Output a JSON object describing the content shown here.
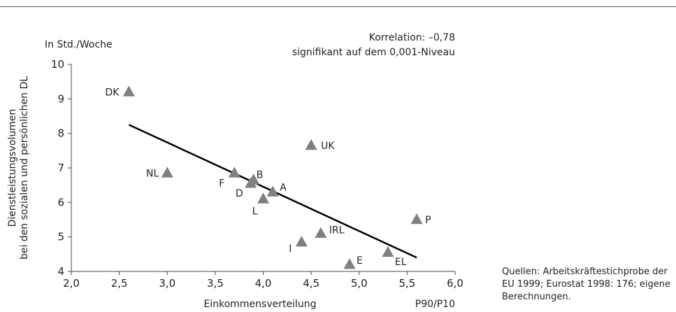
{
  "source_note": "Quellen: Arbeitskräftestichprobe der EU 1999; Eurostat 1998: 176; eigene Berechnungen.",
  "chart_data": {
    "type": "scatter",
    "y_unit_label": "In Std./Woche",
    "ylabel": "Dienstleistungsvolumen bei den sozialen und persönlichen DL",
    "xlabel": "Einkommensverteilung",
    "x_unit_label": "P90/P10",
    "annotation": {
      "line1": "Korrelation: –0,78",
      "line2": "signifikant auf dem 0,001-Niveau"
    },
    "xlim": [
      2.0,
      6.0
    ],
    "ylim": [
      4,
      10
    ],
    "x_ticks": [
      "2,0",
      "2,5",
      "3,0",
      "3,5",
      "4,0",
      "4,5",
      "5,0",
      "5,5",
      "6,0"
    ],
    "y_ticks": [
      "4",
      "5",
      "6",
      "7",
      "8",
      "9",
      "10"
    ],
    "grid": false,
    "marker": "triangle",
    "marker_color": "#808080",
    "line_color": "#000000",
    "points": [
      {
        "label": "DK",
        "x": 2.6,
        "y": 9.2
      },
      {
        "label": "NL",
        "x": 3.0,
        "y": 6.85
      },
      {
        "label": "F",
        "x": 3.7,
        "y": 6.85
      },
      {
        "label": "B",
        "x": 3.9,
        "y": 6.65
      },
      {
        "label": "D",
        "x": 3.87,
        "y": 6.55
      },
      {
        "label": "A",
        "x": 4.1,
        "y": 6.3
      },
      {
        "label": "L",
        "x": 4.0,
        "y": 6.1
      },
      {
        "label": "UK",
        "x": 4.5,
        "y": 7.65
      },
      {
        "label": "IRL",
        "x": 4.6,
        "y": 5.1
      },
      {
        "label": "I",
        "x": 4.4,
        "y": 4.85
      },
      {
        "label": "E",
        "x": 4.9,
        "y": 4.2
      },
      {
        "label": "EL",
        "x": 5.3,
        "y": 4.55
      },
      {
        "label": "P",
        "x": 5.6,
        "y": 5.5
      }
    ],
    "trendline": {
      "x1": 2.6,
      "y1": 8.25,
      "x2": 5.6,
      "y2": 4.4
    }
  }
}
